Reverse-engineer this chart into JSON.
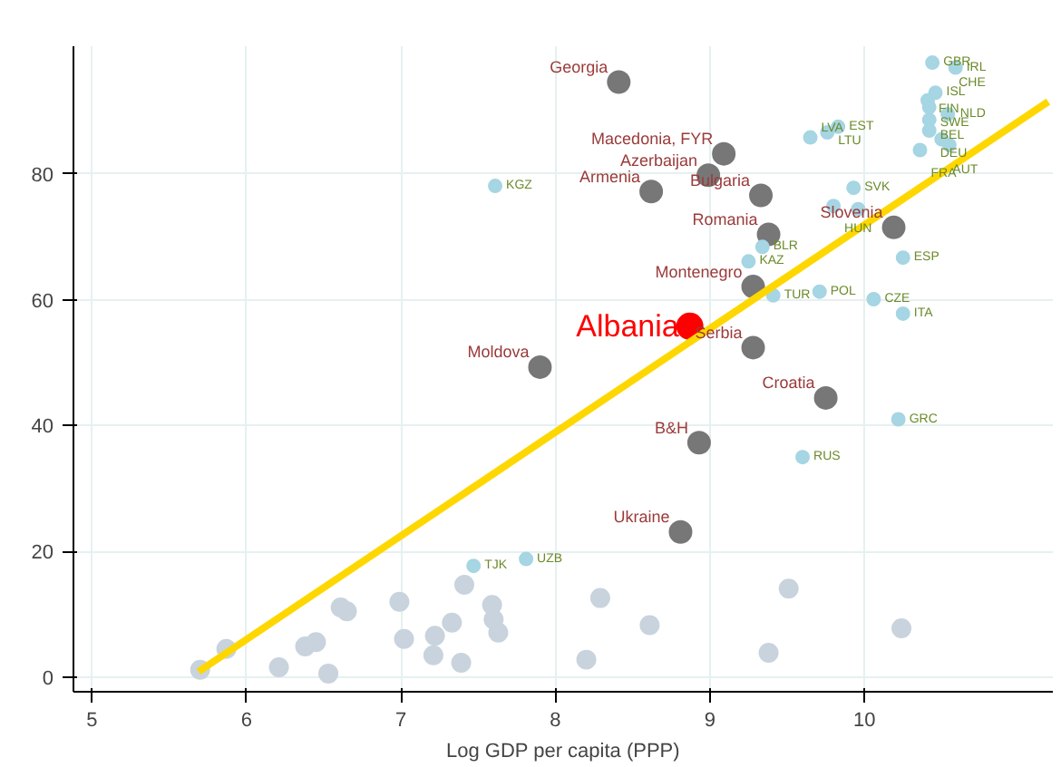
{
  "chart_data": {
    "type": "scatter",
    "xlabel": "Log GDP per capita (PPP)",
    "xlim": [
      4.88,
      11.22
    ],
    "ylim": [
      -2.3,
      100.3
    ],
    "xticks": [
      5,
      6,
      7,
      8,
      9,
      10
    ],
    "yticks": [
      0,
      20,
      40,
      60,
      80
    ],
    "grid": true,
    "marker": "circle",
    "series": [
      {
        "color": "#777777",
        "x": [
          8.41,
          9.09,
          8.99,
          8.62,
          9.33,
          9.38,
          10.19,
          9.28,
          9.28,
          7.9,
          9.75,
          8.93,
          8.81
        ],
        "values": [
          94.6,
          83.2,
          79.8,
          77.2,
          76.6,
          70.4,
          71.5,
          62.1,
          52.4,
          49.3,
          44.4,
          37.3,
          23.1
        ],
        "value_labels": [
          "Georgia",
          "Macedonia, FYR",
          "Azerbaijan",
          "Armenia",
          "Bulgaria",
          "Romania",
          "Slovenia",
          "Montenegro",
          "Serbia",
          "Moldova",
          "Croatia",
          "B&H",
          "Ukraine"
        ]
      },
      {
        "color": "#ff0000",
        "x": [
          8.87
        ],
        "values": [
          55.8
        ],
        "value_labels": [
          "Albania"
        ]
      },
      {
        "color": "#a6d5e3",
        "x": [
          7.61,
          10.44,
          10.59,
          10.46,
          10.41,
          10.42,
          10.42,
          10.54,
          10.42,
          10.5,
          10.55,
          10.36,
          9.83,
          9.76,
          9.65,
          9.93,
          9.8,
          9.96,
          9.34,
          9.25,
          10.25,
          9.41,
          9.71,
          10.06,
          10.25,
          10.22,
          9.6,
          7.47,
          7.81
        ],
        "values": [
          78.1,
          97.7,
          96.9,
          92.9,
          91.7,
          90.6,
          88.6,
          89.5,
          86.9,
          85.5,
          84.6,
          83.8,
          87.5,
          86.6,
          85.8,
          77.8,
          74.9,
          74.4,
          68.4,
          66.1,
          66.7,
          60.7,
          61.3,
          60.1,
          57.8,
          41.0,
          35.0,
          17.7,
          18.8
        ],
        "value_labels": [
          "KGZ",
          "GBR",
          "IRL",
          "ISL",
          "FIN",
          "SWE",
          "BEL",
          "CHE",
          "DEU",
          "AUT",
          "NLD",
          "FRA",
          "EST",
          "LTU",
          "LVA",
          "SVK",
          "HUN",
          null,
          "BLR",
          "KAZ",
          "ESP",
          "TUR",
          "POL",
          "CZE",
          "ITA",
          "GRC",
          "RUS",
          "TJK",
          "UZB"
        ]
      },
      {
        "color": "#c8d3dd",
        "x": [
          5.7,
          5.87,
          6.21,
          6.38,
          6.45,
          6.53,
          6.61,
          6.65,
          6.99,
          7.02,
          7.21,
          7.22,
          7.33,
          7.39,
          7.41,
          7.59,
          7.6,
          7.63,
          8.2,
          8.29,
          8.61,
          9.38,
          9.51,
          10.24
        ],
        "values": [
          1.2,
          4.5,
          1.6,
          4.9,
          5.6,
          0.6,
          11.1,
          10.5,
          12.0,
          6.1,
          3.5,
          6.6,
          8.7,
          2.3,
          14.7,
          11.5,
          9.2,
          7.1,
          2.8,
          12.6,
          8.3,
          3.9,
          14.1,
          7.8
        ]
      },
      {
        "type": "line",
        "color": "#ffd700",
        "x": [
          5.69,
          11.19
        ],
        "values": [
          0.9,
          91.5
        ],
        "line_style": "solid",
        "marker": "none"
      }
    ]
  }
}
